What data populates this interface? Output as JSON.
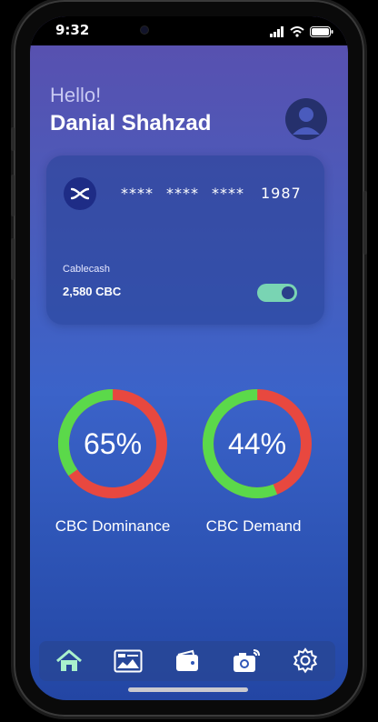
{
  "status_bar": {
    "time": "9:32"
  },
  "header": {
    "greeting": "Hello!",
    "name": "Danial Shahzad"
  },
  "card": {
    "masked_groups": [
      "****",
      "****",
      "****"
    ],
    "last4": "1987",
    "brand": "Cablecash",
    "balance": "2,580 CBC",
    "toggle_on": true
  },
  "gauges": [
    {
      "value_text": "65%",
      "value": 65,
      "label": "CBC Dominance"
    },
    {
      "value_text": "44%",
      "value": 44,
      "label": "CBC Demand"
    }
  ],
  "colors": {
    "gauge_primary": "#5bd94a",
    "gauge_secondary": "#e8483f",
    "toggle": "#79d4b3",
    "tab_active": "#a9f1cc",
    "tab_inactive": "#ffffff"
  },
  "tabs": [
    {
      "icon": "home-icon",
      "active": true
    },
    {
      "icon": "dashboard-icon",
      "active": false
    },
    {
      "icon": "wallet-icon",
      "active": false
    },
    {
      "icon": "camera-icon",
      "active": false
    },
    {
      "icon": "settings-icon",
      "active": false
    }
  ]
}
